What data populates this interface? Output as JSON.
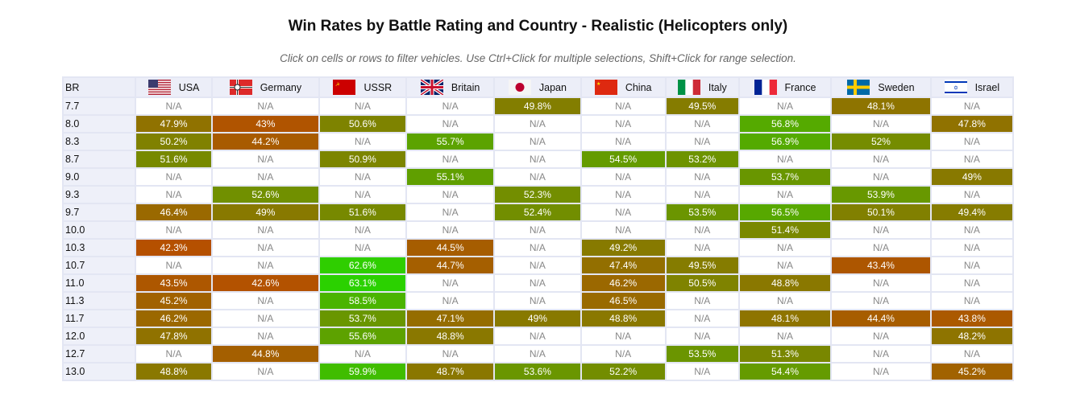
{
  "title": "Win Rates by Battle Rating and Country - Realistic (Helicopters only)",
  "subtitle": "Click on cells or rows to filter vehicles. Use Ctrl+Click for multiple selections, Shift+Click for range selection.",
  "br_header": "BR",
  "countries": [
    {
      "name": "USA",
      "flag": "usa"
    },
    {
      "name": "Germany",
      "flag": "germany"
    },
    {
      "name": "USSR",
      "flag": "ussr"
    },
    {
      "name": "Britain",
      "flag": "britain"
    },
    {
      "name": "Japan",
      "flag": "japan"
    },
    {
      "name": "China",
      "flag": "china"
    },
    {
      "name": "Italy",
      "flag": "italy"
    },
    {
      "name": "France",
      "flag": "france"
    },
    {
      "name": "Sweden",
      "flag": "sweden"
    },
    {
      "name": "Israel",
      "flag": "israel"
    }
  ],
  "rows": [
    {
      "br": "7.7",
      "values": [
        "N/A",
        "N/A",
        "N/A",
        "N/A",
        "49.8%",
        "N/A",
        "49.5%",
        "N/A",
        "48.1%",
        "N/A"
      ]
    },
    {
      "br": "8.0",
      "values": [
        "47.9%",
        "43%",
        "50.6%",
        "N/A",
        "N/A",
        "N/A",
        "N/A",
        "56.8%",
        "N/A",
        "47.8%"
      ]
    },
    {
      "br": "8.3",
      "values": [
        "50.2%",
        "44.2%",
        "N/A",
        "55.7%",
        "N/A",
        "N/A",
        "N/A",
        "56.9%",
        "52%",
        "N/A"
      ]
    },
    {
      "br": "8.7",
      "values": [
        "51.6%",
        "N/A",
        "50.9%",
        "N/A",
        "N/A",
        "54.5%",
        "53.2%",
        "N/A",
        "N/A",
        "N/A"
      ]
    },
    {
      "br": "9.0",
      "values": [
        "N/A",
        "N/A",
        "N/A",
        "55.1%",
        "N/A",
        "N/A",
        "N/A",
        "53.7%",
        "N/A",
        "49%"
      ]
    },
    {
      "br": "9.3",
      "values": [
        "N/A",
        "52.6%",
        "N/A",
        "N/A",
        "52.3%",
        "N/A",
        "N/A",
        "N/A",
        "53.9%",
        "N/A"
      ]
    },
    {
      "br": "9.7",
      "values": [
        "46.4%",
        "49%",
        "51.6%",
        "N/A",
        "52.4%",
        "N/A",
        "53.5%",
        "56.5%",
        "50.1%",
        "49.4%"
      ]
    },
    {
      "br": "10.0",
      "values": [
        "N/A",
        "N/A",
        "N/A",
        "N/A",
        "N/A",
        "N/A",
        "N/A",
        "51.4%",
        "N/A",
        "N/A"
      ]
    },
    {
      "br": "10.3",
      "values": [
        "42.3%",
        "N/A",
        "N/A",
        "44.5%",
        "N/A",
        "49.2%",
        "N/A",
        "N/A",
        "N/A",
        "N/A"
      ]
    },
    {
      "br": "10.7",
      "values": [
        "N/A",
        "N/A",
        "62.6%",
        "44.7%",
        "N/A",
        "47.4%",
        "49.5%",
        "N/A",
        "43.4%",
        "N/A"
      ]
    },
    {
      "br": "11.0",
      "values": [
        "43.5%",
        "42.6%",
        "63.1%",
        "N/A",
        "N/A",
        "46.2%",
        "50.5%",
        "48.8%",
        "N/A",
        "N/A"
      ]
    },
    {
      "br": "11.3",
      "values": [
        "45.2%",
        "N/A",
        "58.5%",
        "N/A",
        "N/A",
        "46.5%",
        "N/A",
        "N/A",
        "N/A",
        "N/A"
      ]
    },
    {
      "br": "11.7",
      "values": [
        "46.2%",
        "N/A",
        "53.7%",
        "47.1%",
        "49%",
        "48.8%",
        "N/A",
        "48.1%",
        "44.4%",
        "43.8%"
      ]
    },
    {
      "br": "12.0",
      "values": [
        "47.8%",
        "N/A",
        "55.6%",
        "48.8%",
        "N/A",
        "N/A",
        "N/A",
        "N/A",
        "N/A",
        "48.2%"
      ]
    },
    {
      "br": "12.7",
      "values": [
        "N/A",
        "44.8%",
        "N/A",
        "N/A",
        "N/A",
        "N/A",
        "53.5%",
        "51.3%",
        "N/A",
        "N/A"
      ]
    },
    {
      "br": "13.0",
      "values": [
        "48.8%",
        "N/A",
        "59.9%",
        "48.7%",
        "53.6%",
        "52.2%",
        "N/A",
        "54.4%",
        "N/A",
        "45.2%"
      ]
    }
  ]
}
